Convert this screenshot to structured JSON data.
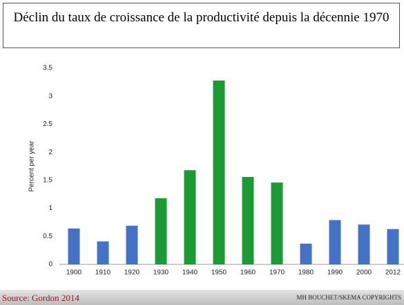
{
  "title": "Déclin du taux de croissance de la productivité depuis la décennie 1970",
  "chart_data": {
    "type": "bar",
    "categories": [
      "1900",
      "1910",
      "1920",
      "1930",
      "1940",
      "1950",
      "1960",
      "1970",
      "1980",
      "1990",
      "2000",
      "2012"
    ],
    "values": [
      0.64,
      0.41,
      0.69,
      1.18,
      1.68,
      3.28,
      1.56,
      1.46,
      0.37,
      0.79,
      0.71,
      0.63
    ],
    "colors": [
      "#4472c4",
      "#4472c4",
      "#4472c4",
      "#1e9a35",
      "#1e9a35",
      "#1e9a35",
      "#1e9a35",
      "#1e9a35",
      "#4472c4",
      "#4472c4",
      "#4472c4",
      "#4472c4"
    ],
    "ylabel": "Percent per year",
    "ylim": [
      0,
      3.5
    ],
    "yticks": [
      0,
      0.5,
      1,
      1.5,
      2,
      2.5,
      3,
      3.5
    ],
    "grid": false
  },
  "footer": {
    "source": "Source: Gordon 2014",
    "copyright": "MH BOUCHET/SKEMA COPYRIGHTS"
  }
}
